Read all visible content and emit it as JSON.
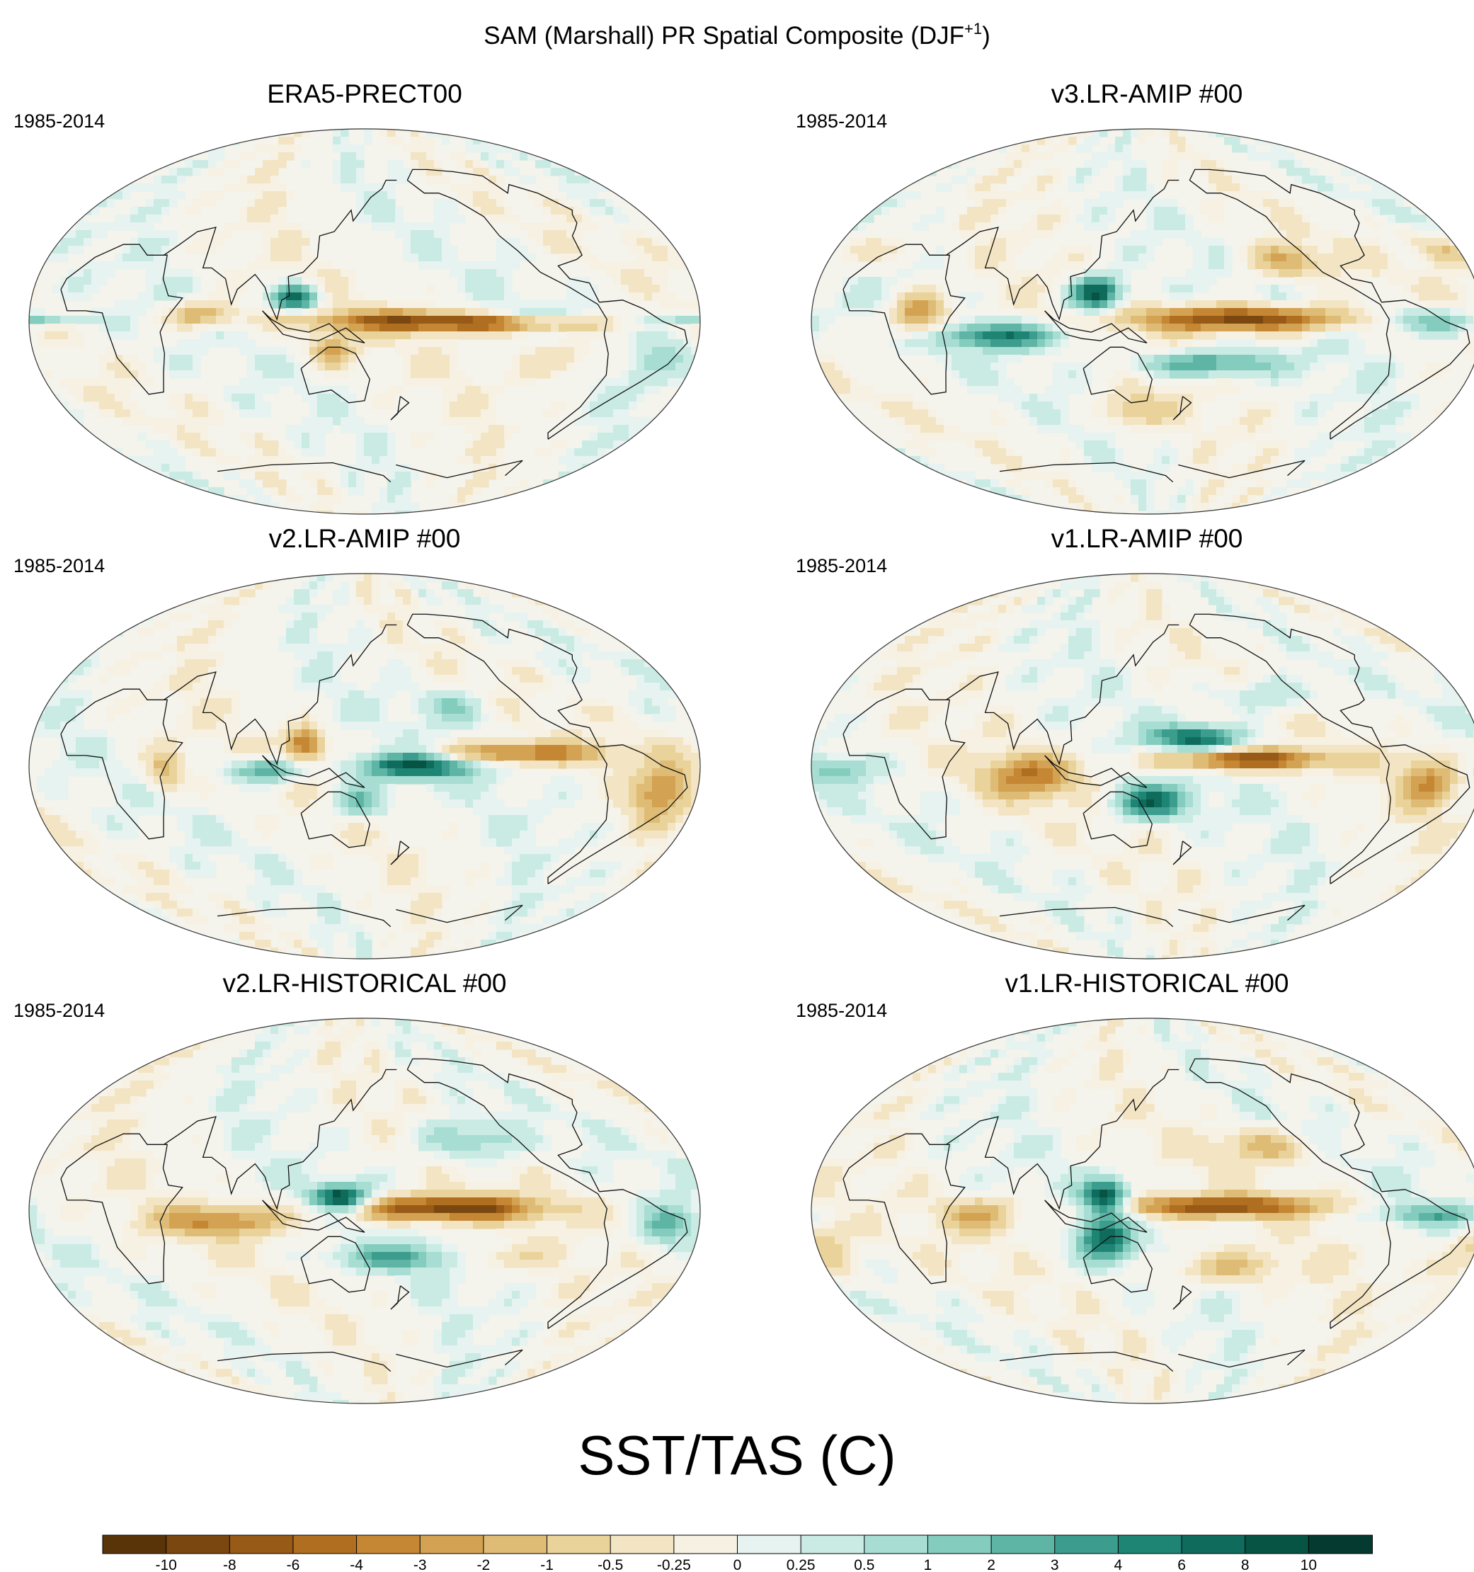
{
  "figure": {
    "title_main": "SAM (Marshall) PR Spatial Composite (DJF",
    "title_superscript": "+1",
    "title_close": ")"
  },
  "panels": [
    {
      "title": "ERA5-PRECT00",
      "period": "1985-2014",
      "pattern": "era5"
    },
    {
      "title": "v3.LR-AMIP  #00",
      "period": "1985-2014",
      "pattern": "v3amip"
    },
    {
      "title": "v2.LR-AMIP  #00",
      "period": "1985-2014",
      "pattern": "v2amip"
    },
    {
      "title": "v1.LR-AMIP  #00",
      "period": "1985-2014",
      "pattern": "v1amip"
    },
    {
      "title": "v2.LR-HISTORICAL  #00",
      "period": "1985-2014",
      "pattern": "v2hist"
    },
    {
      "title": "v1.LR-HISTORICAL  #00",
      "period": "1985-2014",
      "pattern": "v1hist"
    }
  ],
  "colorbar": {
    "title": "SST/TAS (C)",
    "tick_labels": [
      "-10",
      "-8",
      "-6",
      "-4",
      "-3",
      "-2",
      "-1",
      "-0.5",
      "-0.25",
      "0",
      "0.25",
      "0.5",
      "1",
      "2",
      "3",
      "4",
      "6",
      "8",
      "10"
    ],
    "colors": [
      "#5a3409",
      "#7b4710",
      "#975a17",
      "#b06e21",
      "#c58734",
      "#d3a252",
      "#dfbc76",
      "#ead29b",
      "#f3e5c3",
      "#f7f1e4",
      "#e6f3f0",
      "#c9ebe4",
      "#a7ddd3",
      "#84cdbe",
      "#5fb5a5",
      "#3c9c8d",
      "#1e8574",
      "#0f6c5d",
      "#075444",
      "#043a2f"
    ]
  },
  "legend": {
    "projection": "Robinson",
    "land_outline": "coastlines"
  }
}
